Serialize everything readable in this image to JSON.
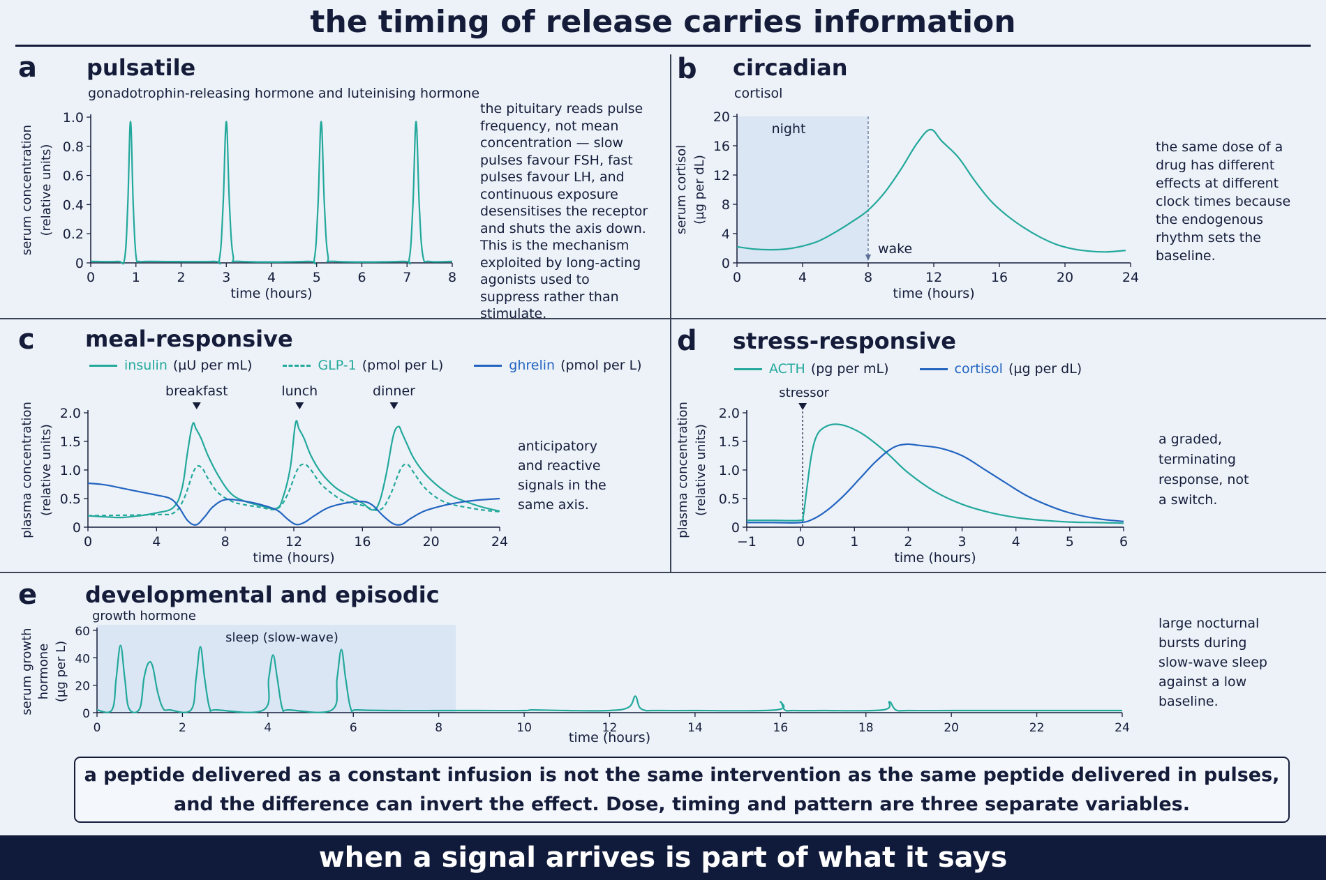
{
  "title": "the timing of release carries information",
  "conclusion_line1": "a peptide delivered as a constant infusion is not the same intervention as the same peptide delivered in pulses,",
  "conclusion_line2": "and the difference can invert the effect.  Dose, timing and pattern are three separate variables.",
  "footer": "when a signal arrives is part of what it says",
  "colors": {
    "teal": "#23a89c",
    "blue": "#2264c0",
    "navy": "#141c3a",
    "shade": "#d3e1f1"
  },
  "panels": {
    "a": {
      "letter": "a",
      "title": "pulsatile",
      "subtitle": "gonadotrophin-releasing hormone and luteinising hormone",
      "note": "the pituitary reads pulse frequency, not mean concentration — slow pulses favour FSH, fast pulses favour LH, and continuous exposure desensitises the receptor and shuts the axis down. This is the mechanism exploited by long-acting agonists used to suppress rather than stimulate."
    },
    "b": {
      "letter": "b",
      "title": "circadian",
      "subtitle": "cortisol",
      "note": "the same dose of a drug has different effects at different clock times because the endogenous rhythm sets the baseline."
    },
    "c": {
      "letter": "c",
      "title": "meal-responsive",
      "note": "anticipatory and reactive signals in the same axis.",
      "legend": [
        {
          "label": "insulin",
          "unit": "(µU per mL)",
          "color": "#23a89c",
          "dash": false
        },
        {
          "label": "GLP-1",
          "unit": "(pmol per L)",
          "color": "#23a89c",
          "dash": true
        },
        {
          "label": "ghrelin",
          "unit": "(pmol per L)",
          "color": "#2264c0",
          "dash": false
        }
      ]
    },
    "d": {
      "letter": "d",
      "title": "stress-responsive",
      "note": "a graded, terminating response, not a switch.",
      "legend": [
        {
          "label": "ACTH",
          "unit": "(pg per mL)",
          "color": "#23a89c",
          "dash": false
        },
        {
          "label": "cortisol",
          "unit": "(µg per dL)",
          "color": "#2264c0",
          "dash": false
        }
      ]
    },
    "e": {
      "letter": "e",
      "title": "developmental and episodic",
      "subtitle": "growth hormone",
      "note": "large nocturnal bursts during slow-wave sleep against a low baseline."
    }
  },
  "chart_data": [
    {
      "id": "a",
      "type": "line",
      "xlabel": "time (hours)",
      "ylabel": [
        "serum concentration",
        "(relative units)"
      ],
      "xlim": [
        0,
        8
      ],
      "ylim": [
        0,
        1.0
      ],
      "xticks": [
        0,
        1,
        2,
        3,
        4,
        5,
        6,
        7,
        8
      ],
      "xtick_labels": [
        "0",
        "1",
        "2",
        "3",
        "4",
        "5",
        "6",
        "7",
        "8"
      ],
      "yticks": [
        0,
        0.2,
        0.4,
        0.6,
        0.8,
        1.0
      ],
      "ytick_labels": [
        "0",
        "0.2",
        "0.4",
        "0.6",
        "0.8",
        "1.0"
      ],
      "series": [
        {
          "color": "#23a89c",
          "dash": false,
          "x": [
            0,
            0.6,
            0.75,
            0.82,
            0.88,
            0.94,
            1.0,
            1.08,
            1.3,
            2.7,
            2.85,
            2.93,
            3.0,
            3.07,
            3.15,
            3.3,
            4.8,
            4.95,
            5.03,
            5.1,
            5.17,
            5.25,
            5.4,
            6.9,
            7.05,
            7.13,
            7.2,
            7.27,
            7.35,
            7.5,
            8.0
          ],
          "y": [
            0.01,
            0.01,
            0.03,
            0.4,
            0.97,
            0.4,
            0.05,
            0.01,
            0.01,
            0.01,
            0.03,
            0.4,
            0.97,
            0.4,
            0.05,
            0.01,
            0.01,
            0.03,
            0.4,
            0.97,
            0.4,
            0.05,
            0.01,
            0.01,
            0.03,
            0.4,
            0.97,
            0.4,
            0.05,
            0.01,
            0.01
          ]
        }
      ]
    },
    {
      "id": "b",
      "type": "line",
      "xlabel": "time (hours)",
      "ylabel": [
        "serum cortisol",
        "(µg per dL)"
      ],
      "xlim": [
        0,
        24
      ],
      "ylim": [
        0,
        20
      ],
      "xticks": [
        0,
        4,
        8,
        12,
        16,
        20,
        24
      ],
      "xtick_labels": [
        "0",
        "4",
        "8",
        "12",
        "16",
        "20",
        "24"
      ],
      "yticks": [
        0,
        4,
        8,
        12,
        16,
        20
      ],
      "ytick_labels": [
        "0",
        "4",
        "8",
        "12",
        "16",
        "20"
      ],
      "shade": {
        "x0": 0,
        "x1": 8,
        "label": "night"
      },
      "marker": {
        "x": 8,
        "label": "wake"
      },
      "series": [
        {
          "color": "#23a89c",
          "dash": false,
          "x": [
            0,
            1,
            2,
            3,
            4,
            5,
            6,
            7,
            8,
            9,
            10,
            11,
            11.8,
            12.5,
            13.5,
            14.5,
            15.5,
            16.5,
            17.5,
            18.5,
            19.5,
            20.5,
            21.5,
            22.5,
            23.7
          ],
          "y": [
            2.2,
            1.9,
            1.8,
            1.9,
            2.3,
            3.0,
            4.2,
            5.6,
            7.2,
            9.6,
            12.8,
            16.4,
            18.2,
            16.6,
            14.4,
            11.2,
            8.4,
            6.4,
            4.8,
            3.5,
            2.5,
            1.9,
            1.6,
            1.5,
            1.7
          ]
        }
      ]
    },
    {
      "id": "c",
      "type": "line",
      "xlabel": "time (hours)",
      "ylabel": [
        "plasma concentration",
        "(relative units)"
      ],
      "xlim": [
        0,
        24
      ],
      "ylim": [
        0,
        2.0
      ],
      "xticks": [
        0,
        4,
        8,
        12,
        16,
        20,
        24
      ],
      "xtick_labels": [
        "0",
        "4",
        "8",
        "12",
        "16",
        "20",
        "24"
      ],
      "yticks": [
        0,
        0.5,
        1.0,
        1.5,
        2.0
      ],
      "ytick_labels": [
        "0",
        "0.5",
        "1.0",
        "1.5",
        "2.0"
      ],
      "events": [
        {
          "x": 6.5,
          "label": "breakfast"
        },
        {
          "x": 12.5,
          "label": "lunch"
        },
        {
          "x": 18,
          "label": "dinner"
        }
      ],
      "series": [
        {
          "name": "insulin",
          "color": "#23a89c",
          "dash": false,
          "x": [
            0,
            1,
            2,
            3,
            4,
            5,
            5.5,
            5.8,
            6.1,
            6.3,
            6.6,
            7.0,
            7.6,
            8.3,
            9.0,
            10,
            11,
            11.4,
            11.8,
            12.1,
            12.3,
            12.6,
            13.0,
            13.6,
            14.4,
            15.2,
            16,
            16.6,
            17,
            17.4,
            17.8,
            18.1,
            18.3,
            18.6,
            19,
            19.6,
            20.4,
            21.2,
            22,
            23,
            24
          ],
          "y": [
            0.2,
            0.18,
            0.17,
            0.2,
            0.25,
            0.35,
            0.7,
            1.3,
            1.8,
            1.72,
            1.55,
            1.25,
            0.9,
            0.6,
            0.47,
            0.38,
            0.33,
            0.55,
            1.05,
            1.82,
            1.72,
            1.55,
            1.25,
            0.95,
            0.7,
            0.55,
            0.42,
            0.3,
            0.45,
            0.95,
            1.6,
            1.76,
            1.65,
            1.45,
            1.2,
            0.95,
            0.72,
            0.55,
            0.45,
            0.35,
            0.28
          ]
        },
        {
          "name": "GLP-1",
          "color": "#23a89c",
          "dash": true,
          "x": [
            0,
            4,
            5,
            5.6,
            6.2,
            6.6,
            7,
            7.6,
            8.4,
            9,
            10,
            11,
            11.6,
            12.2,
            12.6,
            13,
            13.6,
            14.4,
            15,
            16,
            17,
            17.6,
            18.2,
            18.6,
            19,
            19.6,
            20.4,
            21.2,
            22,
            23,
            24
          ],
          "y": [
            0.2,
            0.22,
            0.25,
            0.5,
            1.0,
            1.05,
            0.85,
            0.6,
            0.45,
            0.4,
            0.35,
            0.32,
            0.55,
            1.0,
            1.1,
            1.0,
            0.75,
            0.55,
            0.45,
            0.38,
            0.3,
            0.55,
            1.0,
            1.1,
            0.95,
            0.7,
            0.5,
            0.4,
            0.35,
            0.3,
            0.27
          ]
        },
        {
          "name": "ghrelin",
          "color": "#2264c0",
          "dash": false,
          "x": [
            0,
            1,
            2,
            3,
            4,
            4.8,
            5.3,
            5.8,
            6.3,
            6.8,
            7.3,
            8,
            9,
            10,
            11,
            11.6,
            12.1,
            12.6,
            13.2,
            14,
            15,
            16,
            16.6,
            17.2,
            17.8,
            18.3,
            18.8,
            19.6,
            20.6,
            21.6,
            22.6,
            24
          ],
          "y": [
            0.77,
            0.74,
            0.68,
            0.62,
            0.56,
            0.5,
            0.35,
            0.12,
            0.04,
            0.18,
            0.36,
            0.48,
            0.46,
            0.4,
            0.3,
            0.15,
            0.05,
            0.08,
            0.2,
            0.34,
            0.42,
            0.45,
            0.38,
            0.2,
            0.06,
            0.05,
            0.15,
            0.28,
            0.37,
            0.43,
            0.47,
            0.5
          ]
        }
      ]
    },
    {
      "id": "d",
      "type": "line",
      "xlabel": "time (hours)",
      "ylabel": [
        "plasma concentration",
        "(relative units)"
      ],
      "xlim": [
        -1,
        6
      ],
      "ylim": [
        0,
        2.0
      ],
      "xticks": [
        -1,
        0,
        1,
        2,
        3,
        4,
        5,
        6
      ],
      "xtick_labels": [
        "−1",
        "0",
        "1",
        "2",
        "3",
        "4",
        "5",
        "6"
      ],
      "yticks": [
        0,
        0.5,
        1.0,
        1.5,
        2.0
      ],
      "ytick_labels": [
        "0",
        "0.5",
        "1.0",
        "1.5",
        "2.0"
      ],
      "events": [
        {
          "x": 0,
          "label": "stressor"
        }
      ],
      "series": [
        {
          "name": "ACTH",
          "color": "#23a89c",
          "dash": false,
          "x": [
            -1,
            -0.5,
            0,
            0.05,
            0.12,
            0.2,
            0.3,
            0.45,
            0.65,
            0.9,
            1.2,
            1.6,
            2.0,
            2.5,
            3.0,
            3.5,
            4.0,
            4.5,
            5.0,
            5.5,
            6.0
          ],
          "y": [
            0.12,
            0.12,
            0.12,
            0.2,
            0.7,
            1.25,
            1.6,
            1.75,
            1.8,
            1.75,
            1.6,
            1.3,
            0.95,
            0.62,
            0.4,
            0.26,
            0.17,
            0.12,
            0.09,
            0.08,
            0.07
          ]
        },
        {
          "name": "cortisol",
          "color": "#2264c0",
          "dash": false,
          "x": [
            -1,
            -0.5,
            0,
            0.25,
            0.5,
            0.8,
            1.1,
            1.4,
            1.7,
            1.95,
            2.2,
            2.6,
            3.0,
            3.4,
            3.8,
            4.2,
            4.6,
            5.0,
            5.5,
            6.0
          ],
          "y": [
            0.08,
            0.08,
            0.08,
            0.15,
            0.3,
            0.55,
            0.85,
            1.15,
            1.38,
            1.45,
            1.43,
            1.38,
            1.25,
            1.02,
            0.78,
            0.55,
            0.38,
            0.25,
            0.15,
            0.1
          ]
        }
      ]
    },
    {
      "id": "e",
      "type": "line",
      "xlabel": "time (hours)",
      "ylabel": [
        "serum growth",
        "hormone",
        "(µg per L)"
      ],
      "xlim": [
        0,
        24
      ],
      "ylim": [
        0,
        60
      ],
      "xticks": [
        0,
        2,
        4,
        6,
        8,
        10,
        12,
        14,
        16,
        18,
        20,
        22,
        24
      ],
      "xtick_labels": [
        "0",
        "2",
        "4",
        "6",
        "8",
        "10",
        "12",
        "14",
        "16",
        "18",
        "20",
        "22",
        "24"
      ],
      "yticks": [
        0,
        20,
        40,
        60
      ],
      "ytick_labels": [
        "0",
        "20",
        "40",
        "60"
      ],
      "shade": {
        "x0": 0,
        "x1": 8.4,
        "label": "sleep (slow-wave)"
      },
      "series": [
        {
          "color": "#23a89c",
          "dash": false,
          "x": [
            0,
            0.35,
            0.45,
            0.55,
            0.65,
            0.75,
            1.0,
            1.1,
            1.2,
            1.3,
            1.42,
            1.55,
            1.7,
            2.2,
            2.32,
            2.42,
            2.52,
            2.64,
            2.8,
            3.9,
            4.02,
            4.12,
            4.22,
            4.34,
            4.5,
            5.5,
            5.62,
            5.72,
            5.82,
            5.94,
            6.1,
            7,
            8,
            9,
            10,
            10.2,
            11,
            12,
            12.45,
            12.6,
            12.7,
            12.85,
            13,
            14,
            15.9,
            16,
            16.1,
            16.3,
            17,
            18.4,
            18.55,
            18.7,
            19,
            20,
            21,
            22,
            23,
            24
          ],
          "y": [
            2,
            2,
            25,
            49,
            25,
            3,
            3,
            25,
            36,
            34,
            15,
            3,
            2,
            2,
            25,
            48,
            25,
            3,
            2,
            2,
            25,
            42,
            25,
            3,
            2,
            2,
            25,
            46,
            25,
            3,
            2,
            1.5,
            1.5,
            1.5,
            1.5,
            2,
            1.5,
            1.5,
            4,
            12,
            4,
            1.5,
            1.5,
            1.5,
            2,
            8,
            2,
            1.5,
            1.5,
            2,
            8,
            2,
            1.5,
            1.5,
            1.5,
            1.5,
            1.5,
            1.5
          ]
        }
      ]
    }
  ]
}
